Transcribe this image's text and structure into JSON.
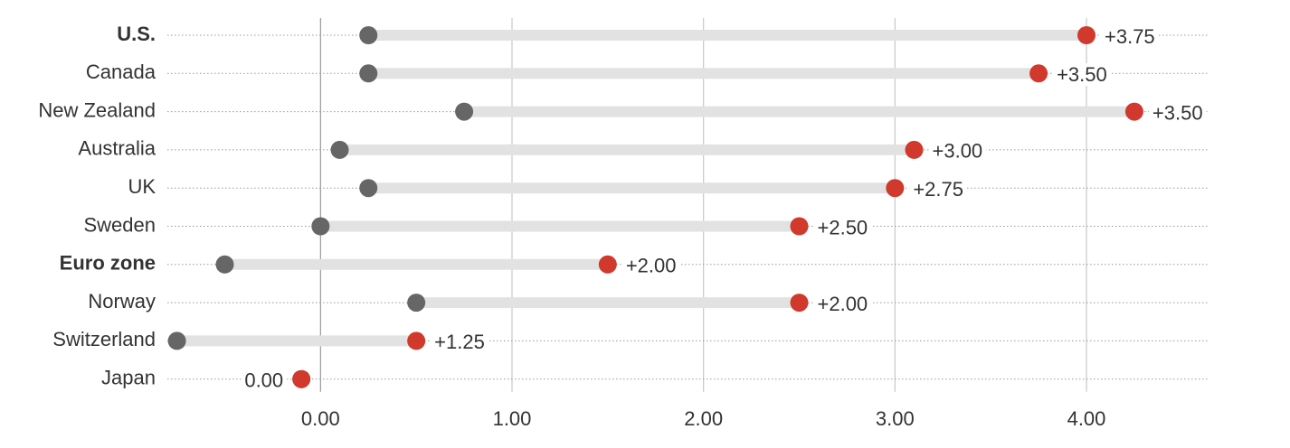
{
  "chart_data": {
    "type": "dumbbell",
    "categories": [
      "U.S.",
      "Canada",
      "New Zealand",
      "Australia",
      "UK",
      "Sweden",
      "Euro zone",
      "Norway",
      "Switzerland",
      "Japan"
    ],
    "bold_categories": [
      0,
      6
    ],
    "start": {
      "color": "#666666",
      "values": [
        0.25,
        0.25,
        0.75,
        0.1,
        0.25,
        0,
        -0.5,
        0.5,
        -0.75,
        -0.1
      ]
    },
    "end": {
      "color": "#d0392b",
      "values": [
        4,
        3.75,
        4.25,
        3.1,
        3,
        2.5,
        1.5,
        2.5,
        0.5,
        -0.1
      ]
    },
    "change": {
      "color": "#e2e2e2",
      "label_color": "#d9534f",
      "values": [
        3.75,
        3.5,
        3.5,
        3,
        2.75,
        2.5,
        2,
        2,
        1.25,
        0
      ],
      "value_labels": [
        "+3.75",
        "+3.50",
        "+3.50",
        "+3.00",
        "+2.75",
        "+2.50",
        "+2.00",
        "+2.00",
        "+1.25",
        "0.00"
      ]
    },
    "xlim": [
      -0.8,
      4.6
    ],
    "xticks": [
      {
        "value": 0,
        "label": "0.00"
      },
      {
        "value": 1,
        "label": "1.00"
      },
      {
        "value": 2,
        "label": "2.00"
      },
      {
        "value": 3,
        "label": "3.00"
      },
      {
        "value": 4,
        "label": "4.00"
      }
    ],
    "grid": true
  }
}
